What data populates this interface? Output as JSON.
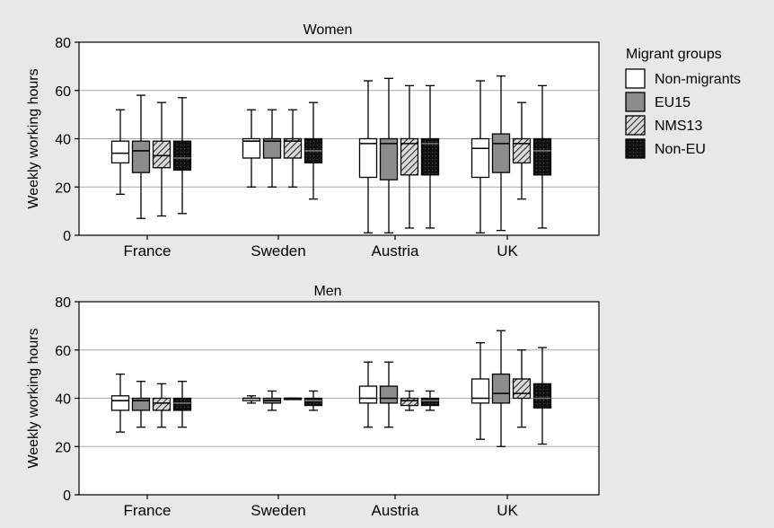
{
  "legend": {
    "title": "Migrant groups",
    "position": "right",
    "items": [
      {
        "label": "Non-migrants",
        "fill": "#ffffff",
        "pattern": "none"
      },
      {
        "label": "EU15",
        "fill": "#8c8c8c",
        "pattern": "none"
      },
      {
        "label": "NMS13",
        "fill": "#d9d9d9",
        "pattern": "diagonal-hatch"
      },
      {
        "label": "Non-EU",
        "fill": "#111111",
        "pattern": "dots"
      }
    ]
  },
  "chart_data": [
    {
      "type": "box",
      "title": "Women",
      "ylabel": "Weekly working hours",
      "xlabel": "",
      "ylim": [
        0,
        80
      ],
      "yticks": [
        0,
        20,
        40,
        60,
        80
      ],
      "grid": "horizontal",
      "categories": [
        "France",
        "Sweden",
        "Austria",
        "UK"
      ],
      "series": [
        {
          "name": "Non-migrants",
          "boxes": [
            {
              "min": 17,
              "q1": 30,
              "median": 34,
              "q3": 39,
              "max": 52
            },
            {
              "min": 20,
              "q1": 32,
              "median": 39,
              "q3": 40,
              "max": 52
            },
            {
              "min": 1,
              "q1": 24,
              "median": 38,
              "q3": 40,
              "max": 64
            },
            {
              "min": 1,
              "q1": 24,
              "median": 36,
              "q3": 40,
              "max": 64
            }
          ]
        },
        {
          "name": "EU15",
          "boxes": [
            {
              "min": 7,
              "q1": 26,
              "median": 35,
              "q3": 39,
              "max": 58
            },
            {
              "min": 20,
              "q1": 32,
              "median": 39,
              "q3": 40,
              "max": 52
            },
            {
              "min": 1,
              "q1": 23,
              "median": 38,
              "q3": 40,
              "max": 65
            },
            {
              "min": 2,
              "q1": 26,
              "median": 38,
              "q3": 42,
              "max": 66
            }
          ]
        },
        {
          "name": "NMS13",
          "boxes": [
            {
              "min": 8,
              "q1": 28,
              "median": 33,
              "q3": 39,
              "max": 55
            },
            {
              "min": 20,
              "q1": 32,
              "median": 39,
              "q3": 40,
              "max": 52
            },
            {
              "min": 3,
              "q1": 25,
              "median": 38,
              "q3": 40,
              "max": 62
            },
            {
              "min": 15,
              "q1": 30,
              "median": 38,
              "q3": 40,
              "max": 55
            }
          ]
        },
        {
          "name": "Non-EU",
          "boxes": [
            {
              "min": 9,
              "q1": 27,
              "median": 32,
              "q3": 39,
              "max": 57
            },
            {
              "min": 15,
              "q1": 30,
              "median": 35,
              "q3": 40,
              "max": 55
            },
            {
              "min": 3,
              "q1": 25,
              "median": 38,
              "q3": 40,
              "max": 62
            },
            {
              "min": 3,
              "q1": 25,
              "median": 35,
              "q3": 40,
              "max": 62
            }
          ]
        }
      ]
    },
    {
      "type": "box",
      "title": "Men",
      "ylabel": "Weekly working hours",
      "xlabel": "",
      "ylim": [
        0,
        80
      ],
      "yticks": [
        0,
        20,
        40,
        60,
        80
      ],
      "grid": "horizontal",
      "categories": [
        "France",
        "Sweden",
        "Austria",
        "UK"
      ],
      "series": [
        {
          "name": "Non-migrants",
          "boxes": [
            {
              "min": 26,
              "q1": 35,
              "median": 39,
              "q3": 41,
              "max": 50
            },
            {
              "min": 38,
              "q1": 39,
              "median": 40,
              "q3": 40,
              "max": 41
            },
            {
              "min": 28,
              "q1": 38,
              "median": 40,
              "q3": 45,
              "max": 55
            },
            {
              "min": 23,
              "q1": 38,
              "median": 40,
              "q3": 48,
              "max": 63
            }
          ]
        },
        {
          "name": "EU15",
          "boxes": [
            {
              "min": 28,
              "q1": 35,
              "median": 39,
              "q3": 40,
              "max": 47
            },
            {
              "min": 35,
              "q1": 38,
              "median": 39,
              "q3": 40,
              "max": 43
            },
            {
              "min": 28,
              "q1": 38,
              "median": 40,
              "q3": 45,
              "max": 55
            },
            {
              "min": 20,
              "q1": 38,
              "median": 42,
              "q3": 50,
              "max": 68
            }
          ]
        },
        {
          "name": "NMS13",
          "boxes": [
            {
              "min": 28,
              "q1": 35,
              "median": 38,
              "q3": 40,
              "max": 46
            },
            {
              "min": 40,
              "q1": 40,
              "median": 40,
              "q3": 40,
              "max": 40
            },
            {
              "min": 35,
              "q1": 37,
              "median": 39,
              "q3": 40,
              "max": 43
            },
            {
              "min": 28,
              "q1": 40,
              "median": 42,
              "q3": 48,
              "max": 60
            }
          ]
        },
        {
          "name": "Non-EU",
          "boxes": [
            {
              "min": 28,
              "q1": 35,
              "median": 38,
              "q3": 40,
              "max": 47
            },
            {
              "min": 35,
              "q1": 37,
              "median": 39,
              "q3": 40,
              "max": 43
            },
            {
              "min": 35,
              "q1": 37,
              "median": 39,
              "q3": 40,
              "max": 43
            },
            {
              "min": 21,
              "q1": 36,
              "median": 40,
              "q3": 46,
              "max": 61
            }
          ]
        }
      ]
    }
  ]
}
